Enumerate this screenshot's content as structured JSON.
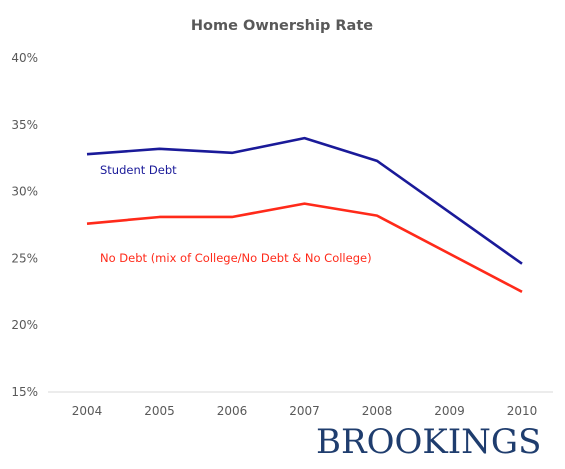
{
  "chart_data": {
    "type": "line",
    "title": "Home Ownership Rate",
    "xlabel": "",
    "ylabel": "",
    "categories": [
      "2004",
      "2005",
      "2006",
      "2007",
      "2008",
      "2009",
      "2010"
    ],
    "ylim": [
      15,
      40
    ],
    "y_ticks": [
      "15%",
      "20%",
      "25%",
      "30%",
      "35%",
      "40%"
    ],
    "y_tick_values": [
      15,
      20,
      25,
      30,
      35,
      40
    ],
    "grid": false,
    "series": [
      {
        "name": "Student Debt",
        "color": "#1a1a99",
        "values": [
          32.8,
          33.2,
          32.9,
          34.0,
          32.3,
          null,
          24.6
        ]
      },
      {
        "name": "No Debt (mix of College/No Debt & No College)",
        "color": "#ff2a1a",
        "values": [
          27.6,
          28.1,
          28.1,
          29.1,
          28.2,
          null,
          22.5
        ]
      }
    ]
  },
  "branding": {
    "logo_text": "BROOKINGS"
  }
}
